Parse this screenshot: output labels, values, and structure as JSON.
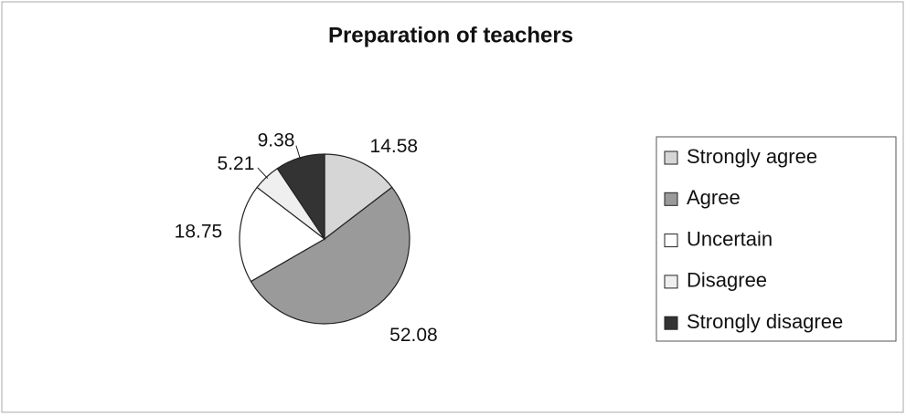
{
  "chart_data": {
    "type": "pie",
    "title": "Preparation of teachers",
    "categories": [
      "Strongly agree",
      "Agree",
      "Uncertain",
      "Disagree",
      "Strongly disagree"
    ],
    "values": [
      14.58,
      52.08,
      18.75,
      5.21,
      9.38
    ],
    "colors": [
      "#d6d6d6",
      "#9a9a9a",
      "#ffffff",
      "#efefef",
      "#333333"
    ],
    "legend": "right"
  }
}
